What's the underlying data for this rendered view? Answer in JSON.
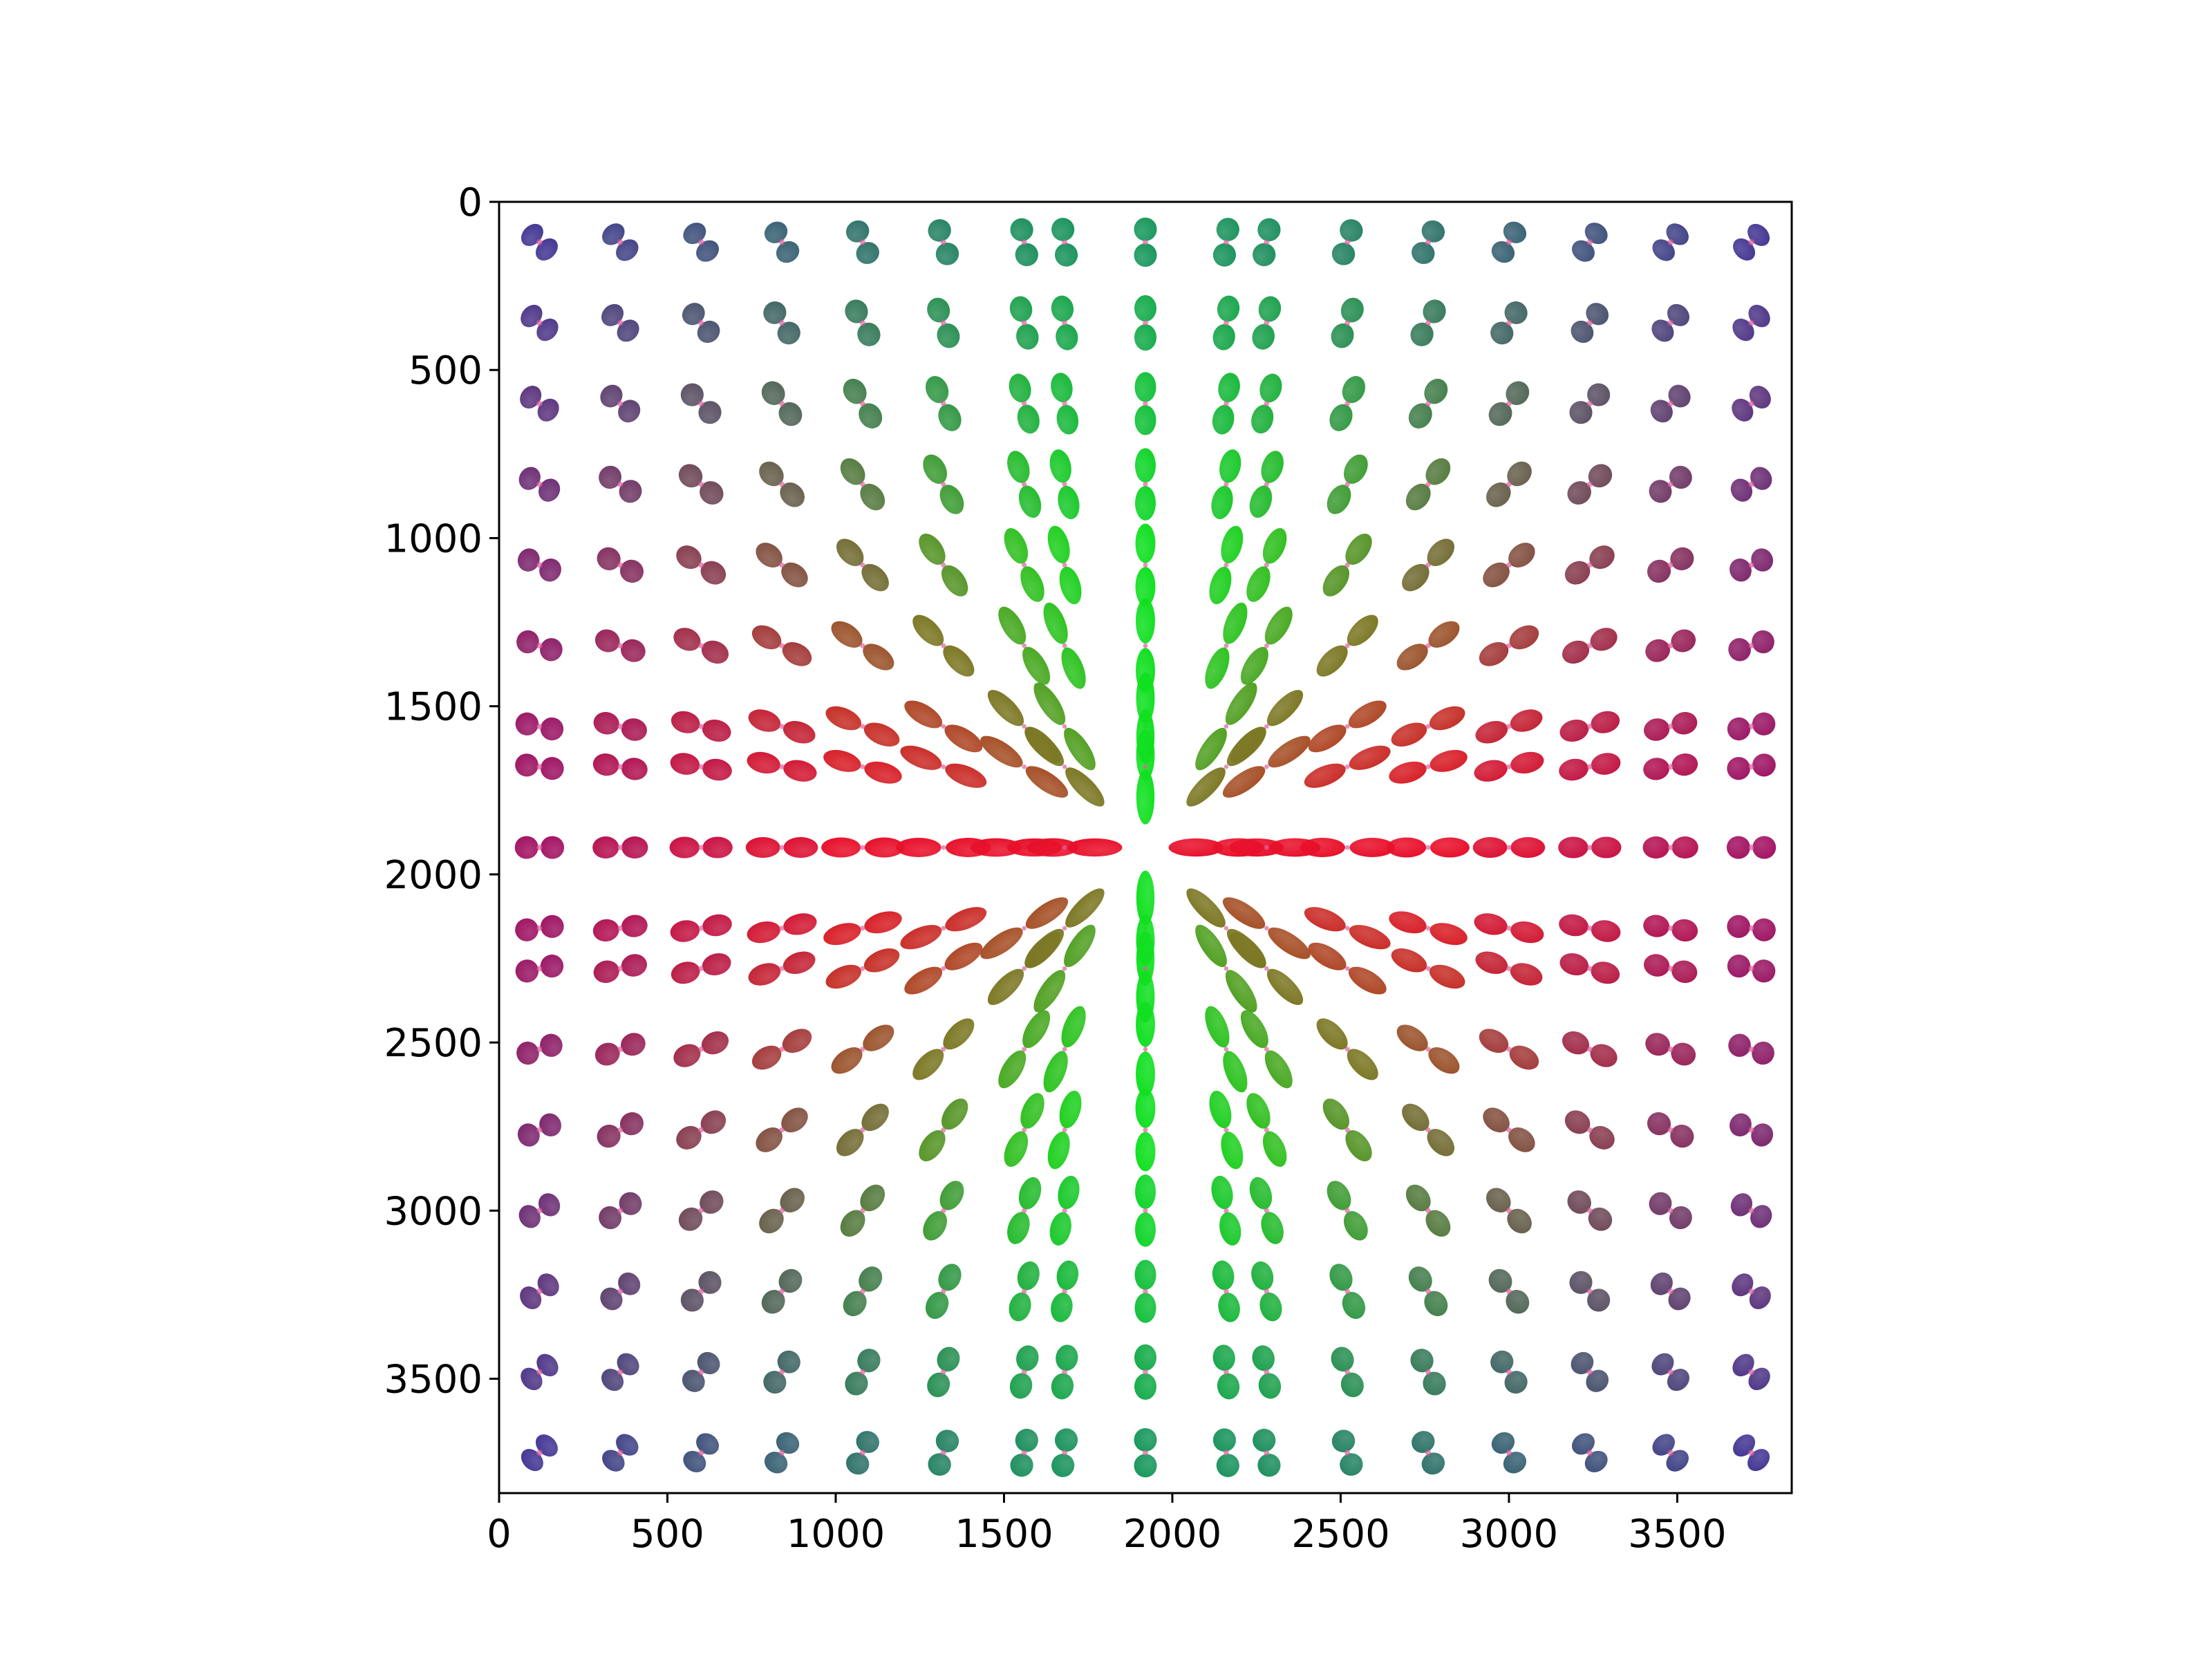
{
  "chart_data": {
    "type": "scatter",
    "title": "",
    "xlabel": "",
    "ylabel": "",
    "xlim": [
      0,
      3840
    ],
    "ylim": [
      3840,
      0
    ],
    "y_inverted": true,
    "grid": false,
    "legend": "none",
    "x_ticks": [
      0,
      500,
      1000,
      1500,
      2000,
      2500,
      3000,
      3500
    ],
    "y_ticks": [
      0,
      500,
      1000,
      1500,
      2000,
      2500,
      3000,
      3500
    ],
    "x_tick_labels": [
      "0",
      "500",
      "1000",
      "1500",
      "2000",
      "2500",
      "3000",
      "3500"
    ],
    "y_tick_labels": [
      "0",
      "500",
      "1000",
      "1500",
      "2000",
      "2500",
      "3000",
      "3500"
    ],
    "glyph_grid": {
      "centers": [
        120,
        360,
        600,
        840,
        1080,
        1320,
        1560,
        1680,
        1920,
        2160,
        2280,
        2520,
        2760,
        3000,
        3240,
        3480,
        3720
      ],
      "focus": [
        1920,
        1920
      ]
    },
    "colors": {
      "x_dominant": "#e8102a",
      "y_dominant": "#10e020",
      "z_dominant": "#2a1ac8",
      "axes": "#000000"
    }
  }
}
